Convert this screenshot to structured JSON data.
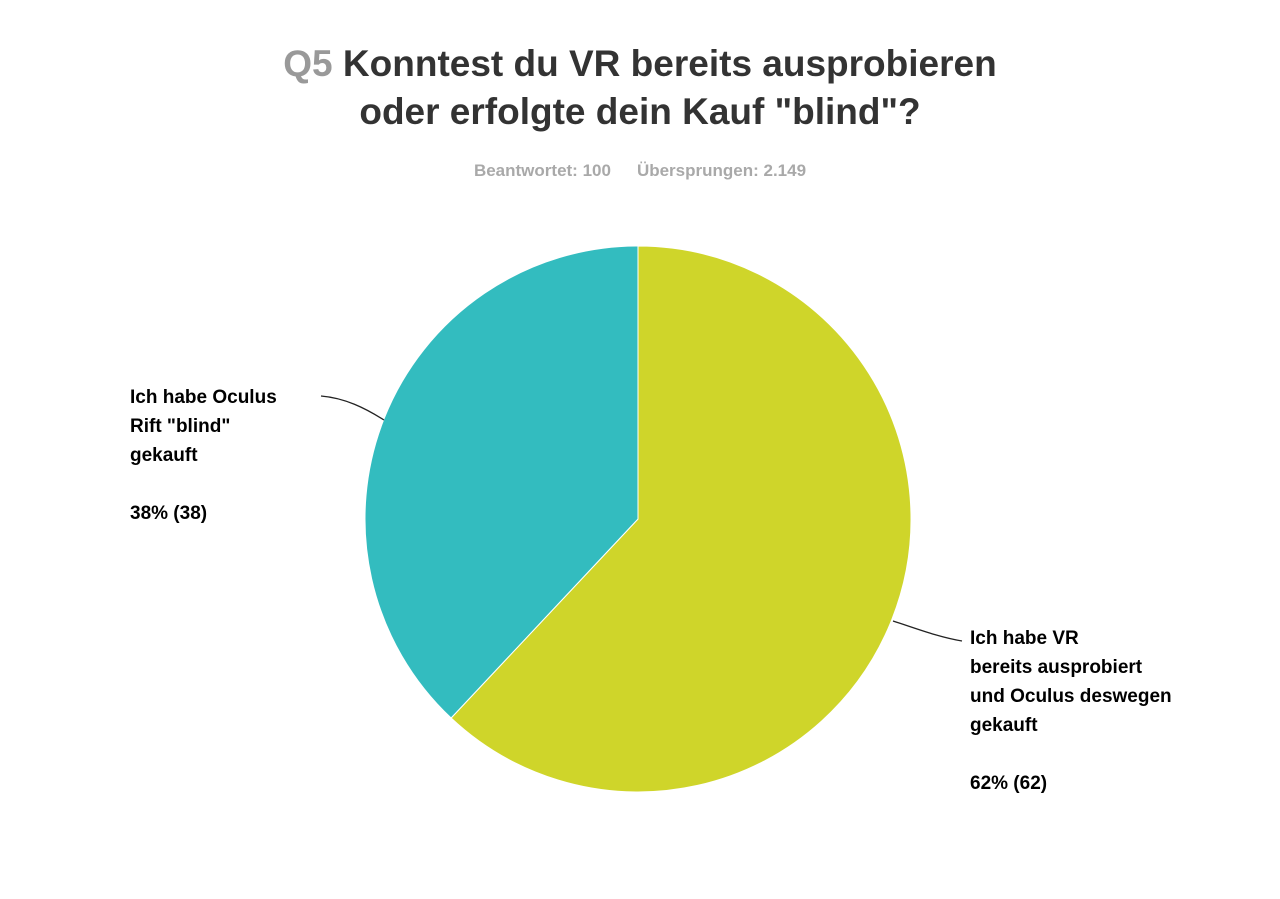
{
  "header": {
    "question_number": "Q5",
    "title_line1": "Konntest du VR bereits ausprobieren",
    "title_line2": "oder erfolgte dein Kauf \"blind\"?"
  },
  "stats": {
    "answered": "Beantwortet: 100",
    "skipped": "Übersprungen: 2.149"
  },
  "chart_data": {
    "type": "pie",
    "title": "Q5 Konntest du VR bereits ausprobieren oder erfolgte dein Kauf \"blind\"?",
    "slices": [
      {
        "label_lines": [
          "Ich habe VR",
          "bereits ausprobiert",
          "und Oculus deswegen",
          "gekauft"
        ],
        "value": 62,
        "percent": 62,
        "percent_label": "62% (62)",
        "color": "#cfd52a"
      },
      {
        "label_lines": [
          "Ich habe Oculus",
          "Rift \"blind\"",
          "gekauft"
        ],
        "value": 38,
        "percent": 38,
        "percent_label": "38% (38)",
        "color": "#33bcbf"
      }
    ]
  }
}
